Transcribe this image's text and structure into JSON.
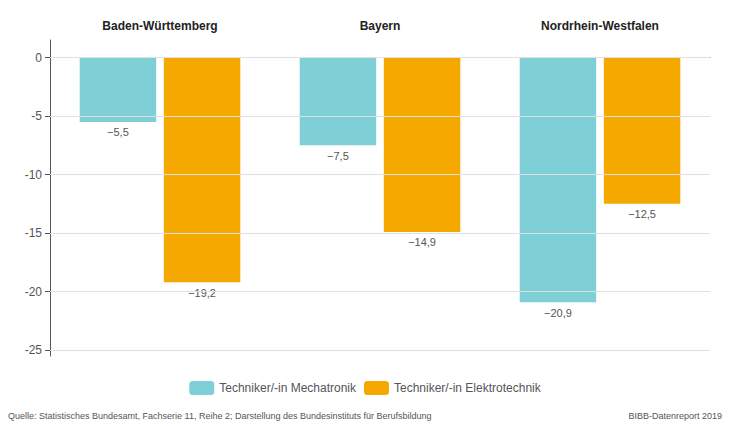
{
  "chart_data": {
    "type": "bar",
    "categories": [
      "Baden-Württemberg",
      "Bayern",
      "Nordrhein-Westfalen"
    ],
    "series": [
      {
        "name": "Techniker/-in Mechatronik",
        "color": "#7ecfd6",
        "values": [
          -5.5,
          -7.5,
          -20.9
        ],
        "value_labels": [
          "−5,5",
          "−7,5",
          "−20,9"
        ]
      },
      {
        "name": "Techniker/-in Elektrotechnik",
        "color": "#f5a800",
        "values": [
          -19.2,
          -14.9,
          -12.5
        ],
        "value_labels": [
          "−19,2",
          "−14,9",
          "−12,5"
        ]
      }
    ],
    "ylim": [
      -25.5,
      1.5
    ],
    "yticks": [
      0,
      -5,
      -10,
      -15,
      -20,
      -25
    ],
    "grid": true,
    "data_labels": true,
    "legend": "bottom",
    "annotations": [
      "Quelle: Statistisches Bundesamt, Fachserie 11, Reihe 2; Darstellung des Bundesinstituts für Berufsbildung",
      "BIBB-Datenreport 2019"
    ]
  }
}
